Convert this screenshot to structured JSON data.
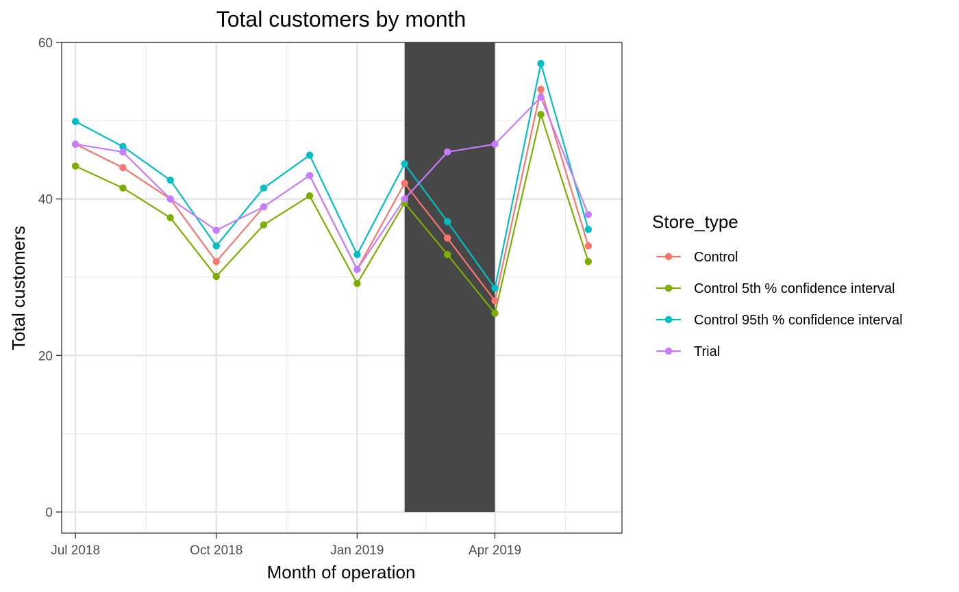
{
  "chart_data": {
    "type": "line",
    "title": "Total customers by month",
    "xlabel": "Month of operation",
    "ylabel": "Total customers",
    "x": [
      "2018-07",
      "2018-08",
      "2018-09",
      "2018-10",
      "2018-11",
      "2018-12",
      "2019-01",
      "2019-02",
      "2019-03",
      "2019-04",
      "2019-05",
      "2019-06"
    ],
    "x_ticks": [
      {
        "value": "2018-07",
        "label": "Jul 2018"
      },
      {
        "value": "2018-10",
        "label": "Oct 2018"
      },
      {
        "value": "2019-01",
        "label": "Jan 2019"
      },
      {
        "value": "2019-04",
        "label": "Apr 2019"
      }
    ],
    "xlim": [
      "2018-06-22",
      "2019-06-23"
    ],
    "ylim": [
      -2.7,
      60
    ],
    "y_ticks": [
      0,
      20,
      40,
      60
    ],
    "grid": true,
    "highlight_region": {
      "x_start": "2019-02-01",
      "x_end": "2019-04-01",
      "color": "#474747"
    },
    "legend": {
      "title": "Store_type",
      "position": "right"
    },
    "series": [
      {
        "name": "Control",
        "color": "#F8766D",
        "values": [
          47,
          44,
          40,
          32,
          39,
          43,
          31,
          42,
          35,
          27,
          54,
          34
        ]
      },
      {
        "name": "Control 5th % confidence interval",
        "color": "#7CAE00",
        "values": [
          44.2,
          41.4,
          37.6,
          30.1,
          36.7,
          40.4,
          29.2,
          39.5,
          32.9,
          25.4,
          50.8,
          32.0
        ]
      },
      {
        "name": "Control 95th % confidence interval",
        "color": "#00BFC4",
        "values": [
          49.9,
          46.7,
          42.4,
          34.0,
          41.4,
          45.6,
          32.9,
          44.5,
          37.1,
          28.6,
          57.3,
          36.1
        ]
      },
      {
        "name": "Trial",
        "color": "#C77CFF",
        "values": [
          47,
          46,
          40,
          36,
          39,
          43,
          31,
          40,
          46,
          47,
          53,
          38
        ]
      }
    ]
  }
}
